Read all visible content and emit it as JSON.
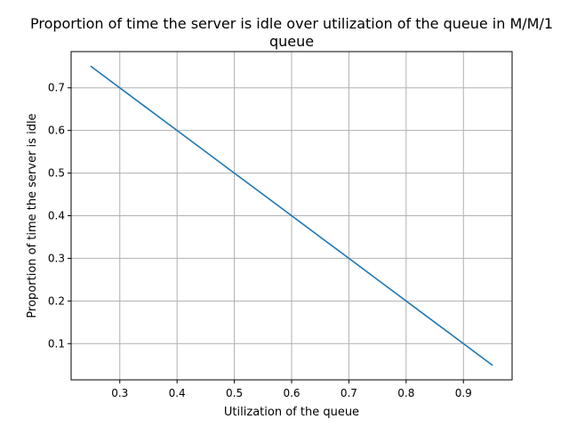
{
  "chart_data": {
    "type": "line",
    "title_line1": "Proportion of time the server is idle over utilization of the queue in M/M/1",
    "title_line2": "queue",
    "xlabel": "Utilization of the queue",
    "ylabel": "Proportion of time the server is idle",
    "xlim": [
      0.215,
      0.985
    ],
    "ylim": [
      0.015,
      0.785
    ],
    "xticks": [
      0.3,
      0.4,
      0.5,
      0.6,
      0.7,
      0.8,
      0.9
    ],
    "yticks": [
      0.1,
      0.2,
      0.3,
      0.4,
      0.5,
      0.6,
      0.7
    ],
    "grid": true,
    "series": [
      {
        "color": "#1f77b4",
        "x": [
          0.25,
          0.35,
          0.45,
          0.55,
          0.65,
          0.75,
          0.85,
          0.95
        ],
        "y": [
          0.75,
          0.65,
          0.55,
          0.45,
          0.35,
          0.25,
          0.15,
          0.05
        ]
      }
    ]
  }
}
